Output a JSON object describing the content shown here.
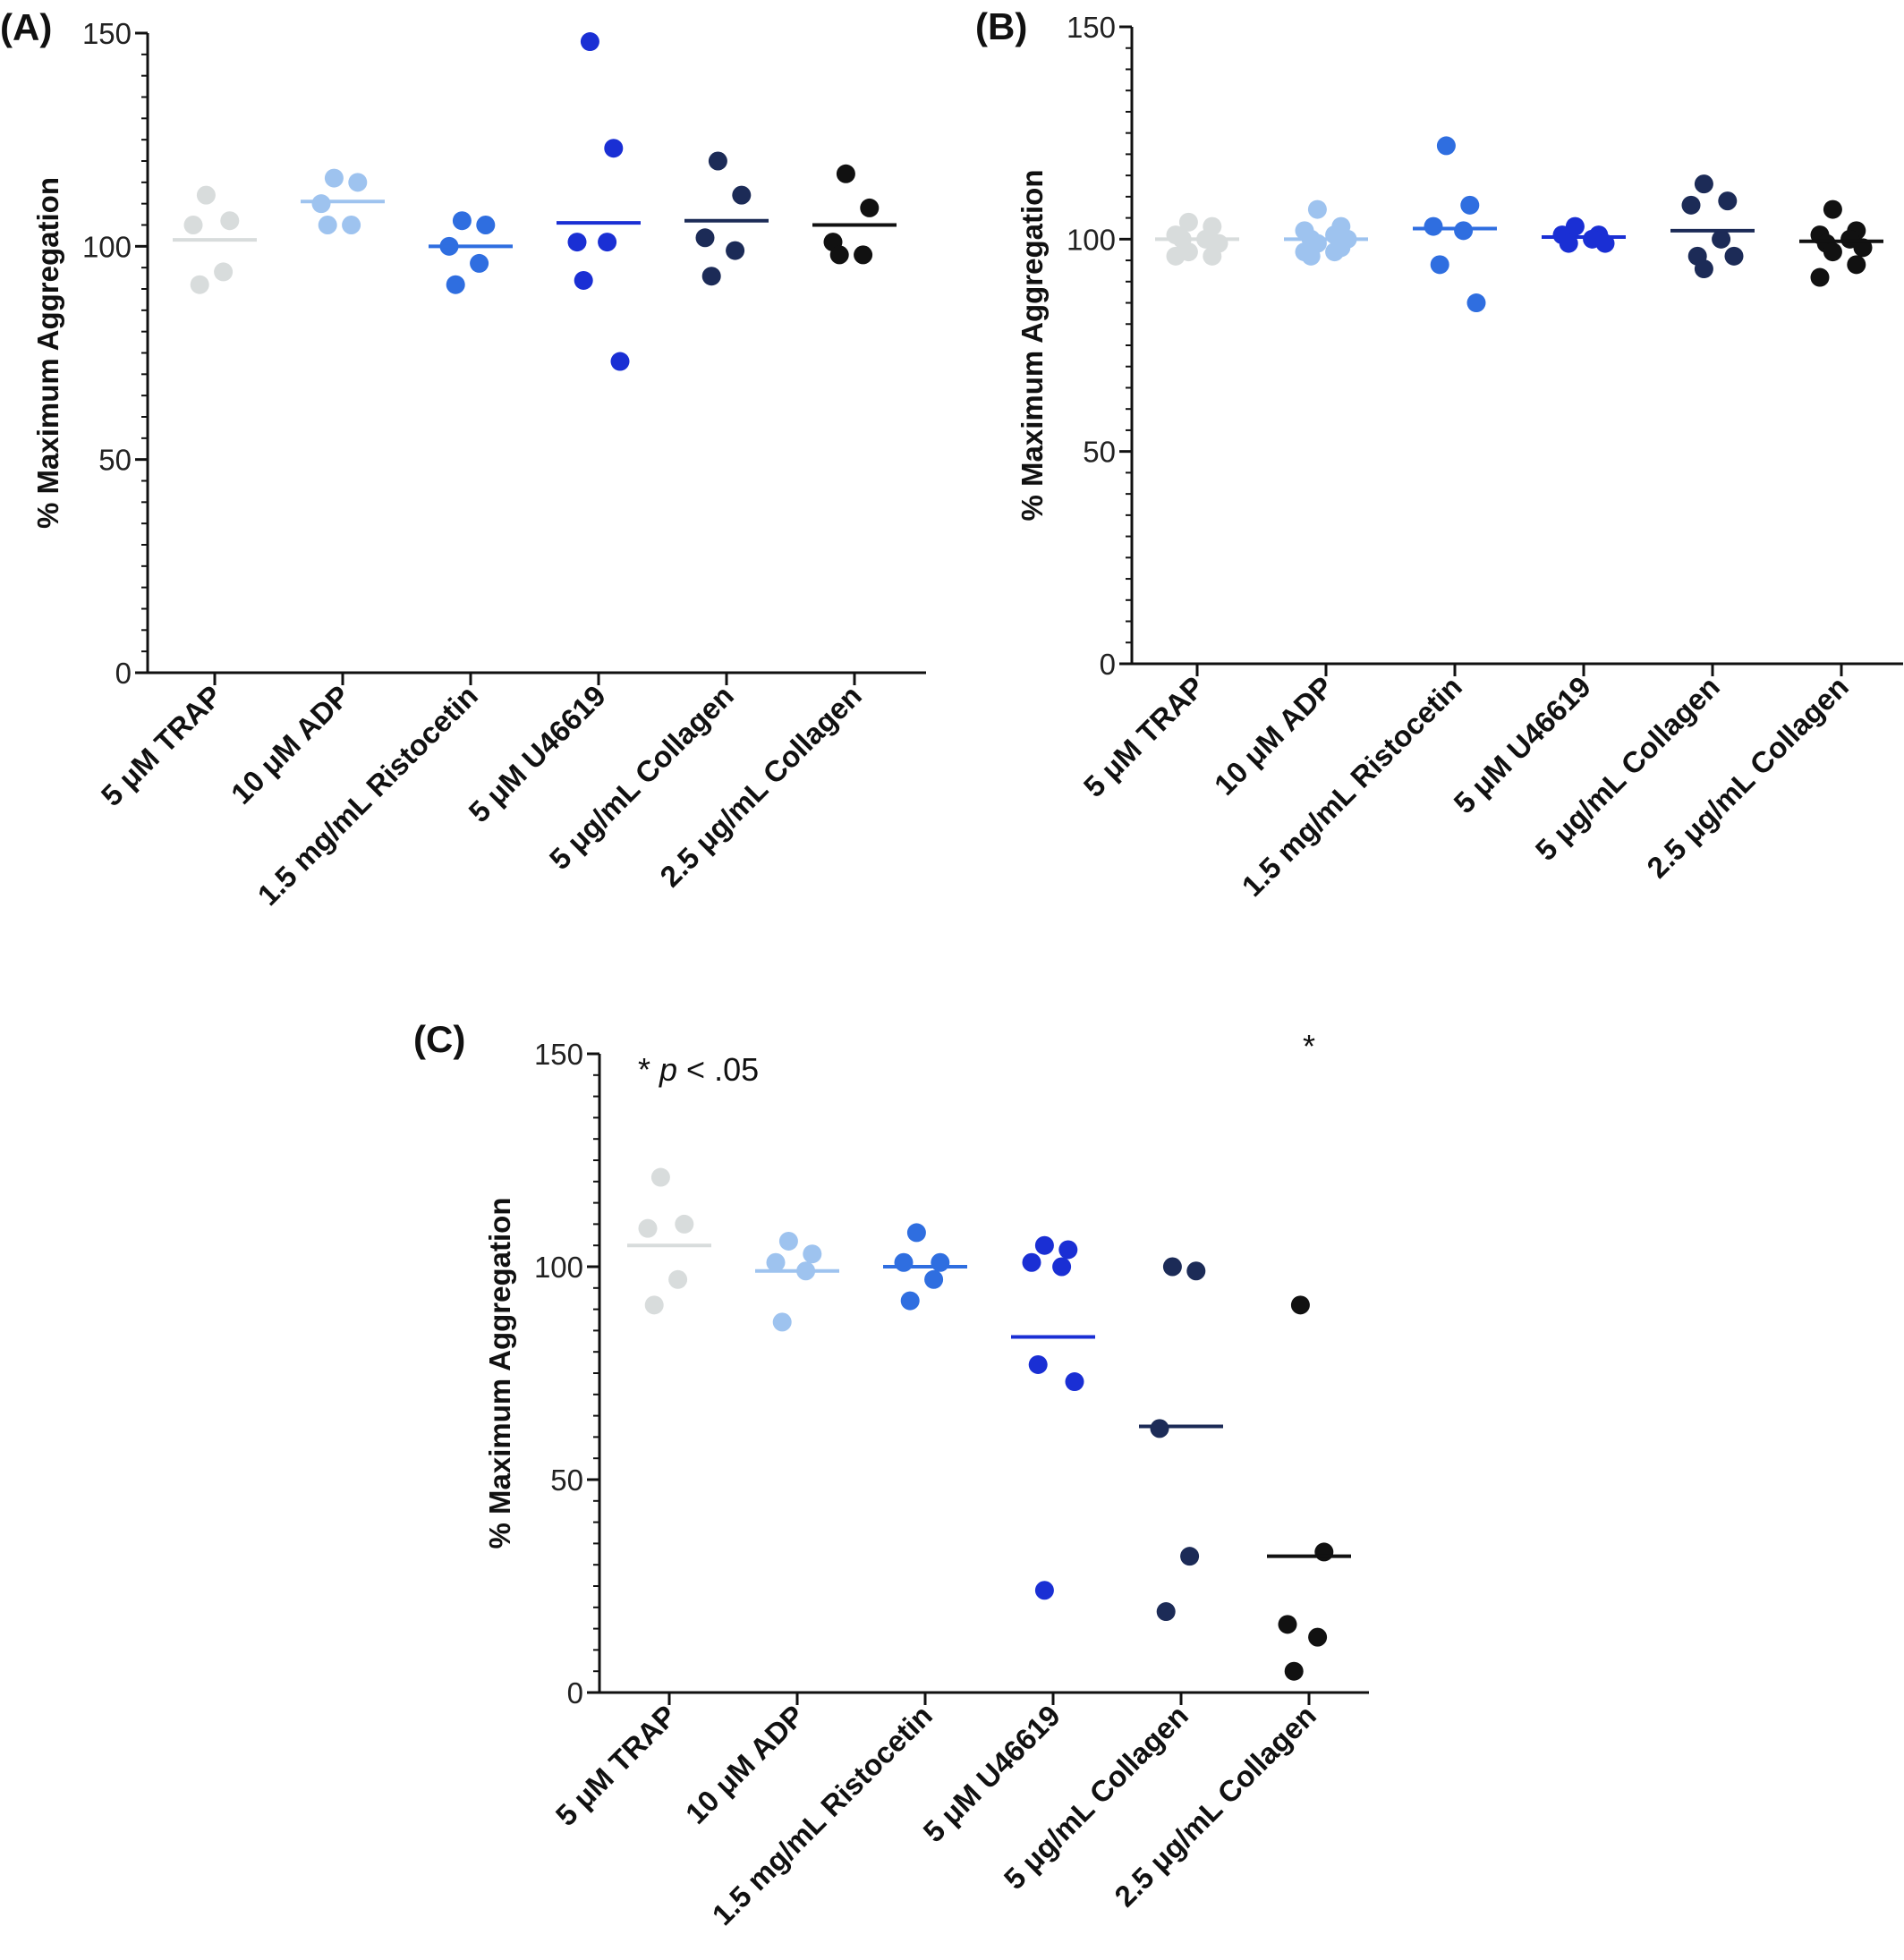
{
  "chart_data": [
    {
      "panel": "(A)",
      "type": "scatter",
      "ylabel": "% Maximum Aggregation",
      "ylim": [
        0,
        150
      ],
      "yticks": [
        0,
        50,
        100,
        150
      ],
      "categories": [
        "5 μM TRAP",
        "10 μM ADP",
        "1.5 mg/mL Ristocetin",
        "5 μM U46619",
        "5 μg/mL Collagen",
        "2.5 μg/mL Collagen"
      ],
      "colors": [
        "#d8dcdc",
        "#9ec3ef",
        "#2f6ee0",
        "#1a2fd4",
        "#1c2b57",
        "#111111"
      ],
      "series": [
        {
          "points": [
            112,
            106,
            105,
            94,
            91
          ],
          "mean": 101.5
        },
        {
          "points": [
            116,
            115,
            110,
            105,
            105
          ],
          "mean": 110.5
        },
        {
          "points": [
            106,
            105,
            100,
            96,
            91
          ],
          "mean": 100
        },
        {
          "points": [
            148,
            123,
            101,
            101,
            92,
            73
          ],
          "mean": 105.5
        },
        {
          "points": [
            120,
            112,
            102,
            99,
            93
          ],
          "mean": 106
        },
        {
          "points": [
            117,
            109,
            101,
            98,
            98
          ],
          "mean": 105
        }
      ],
      "annotations": []
    },
    {
      "panel": "(B)",
      "type": "scatter",
      "ylabel": "% Maximum Aggregation",
      "ylim": [
        0,
        150
      ],
      "yticks": [
        0,
        50,
        100,
        150
      ],
      "categories": [
        "5 μM TRAP",
        "10 μM ADP",
        "1.5 mg/mL Ristocetin",
        "5 μM U46619",
        "5 μg/mL Collagen",
        "2.5 μg/mL Collagen"
      ],
      "colors": [
        "#d8dcdc",
        "#9ec3ef",
        "#2f6ee0",
        "#1a2fd4",
        "#1c2b57",
        "#111111"
      ],
      "series": [
        {
          "points": [
            104,
            103,
            101,
            100,
            100,
            99,
            97,
            96,
            96
          ],
          "mean": 100
        },
        {
          "points": [
            107,
            103,
            102,
            101,
            100,
            100,
            99,
            98,
            97,
            97,
            96
          ],
          "mean": 100
        },
        {
          "points": [
            122,
            108,
            103,
            102,
            94,
            85
          ],
          "mean": 102.5
        },
        {
          "points": [
            103,
            101,
            101,
            100,
            99,
            99
          ],
          "mean": 100.5
        },
        {
          "points": [
            113,
            109,
            108,
            100,
            96,
            96,
            93
          ],
          "mean": 102
        },
        {
          "points": [
            107,
            102,
            101,
            100,
            99,
            98,
            97,
            94,
            91
          ],
          "mean": 99.5
        }
      ],
      "annotations": []
    },
    {
      "panel": "(C)",
      "type": "scatter",
      "ylabel": "% Maximum Aggregation",
      "ylim": [
        0,
        150
      ],
      "yticks": [
        0,
        50,
        100,
        150
      ],
      "categories": [
        "5 μM TRAP",
        "10 μM ADP",
        "1.5 mg/mL Ristocetin",
        "5 μM U46619",
        "5 μg/mL Collagen",
        "2.5 μg/mL Collagen"
      ],
      "colors": [
        "#d8dcdc",
        "#9ec3ef",
        "#2f6ee0",
        "#1a2fd4",
        "#1c2b57",
        "#111111"
      ],
      "series": [
        {
          "points": [
            121,
            110,
            109,
            97,
            91
          ],
          "mean": 105
        },
        {
          "points": [
            106,
            103,
            101,
            99,
            87
          ],
          "mean": 99
        },
        {
          "points": [
            108,
            101,
            101,
            97,
            92
          ],
          "mean": 100
        },
        {
          "points": [
            105,
            104,
            101,
            100,
            77,
            73,
            24
          ],
          "mean": 83.5
        },
        {
          "points": [
            100,
            99,
            62,
            32,
            19
          ],
          "mean": 62.5
        },
        {
          "points": [
            91,
            33,
            16,
            13,
            5
          ],
          "mean": 32
        }
      ],
      "annotations": [
        {
          "text_prefix": "* ",
          "text_italic": "p",
          "text_suffix": " < .05"
        },
        {
          "text": "*",
          "category_index": 5
        }
      ]
    }
  ]
}
